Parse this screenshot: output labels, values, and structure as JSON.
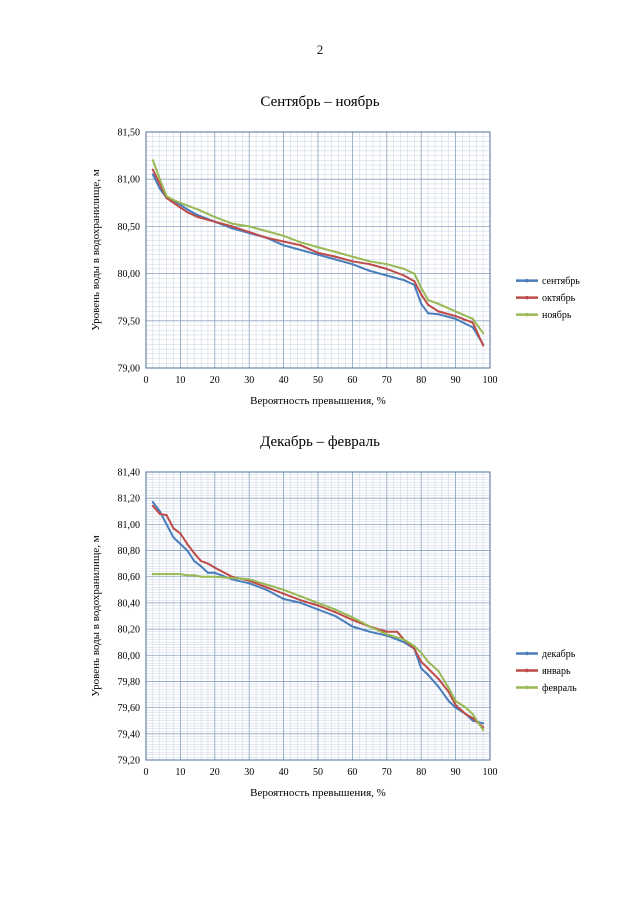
{
  "page_number": "2",
  "chart_data": [
    {
      "type": "line",
      "title": "Сентябрь – ноябрь",
      "xlabel": "Вероятность превышения, %",
      "ylabel": "Уровень воды в водохранилище, м",
      "xlim": [
        0,
        100
      ],
      "ylim": [
        79.0,
        81.5
      ],
      "x_ticks": [
        "0",
        "10",
        "20",
        "30",
        "40",
        "50",
        "60",
        "70",
        "80",
        "90",
        "100"
      ],
      "y_ticks": [
        "79,00",
        "79,50",
        "80,00",
        "80,50",
        "81,00",
        "81,50"
      ],
      "grid": true,
      "legend_position": "right",
      "series": [
        {
          "name": "сентябрь",
          "color": "#4a7ebb",
          "x": [
            2,
            4,
            6,
            8,
            10,
            12,
            15,
            20,
            25,
            30,
            35,
            40,
            45,
            50,
            55,
            60,
            65,
            70,
            75,
            78,
            80,
            82,
            85,
            90,
            95,
            98
          ],
          "y": [
            81.05,
            80.9,
            80.8,
            80.77,
            80.73,
            80.68,
            80.62,
            80.55,
            80.48,
            80.43,
            80.38,
            80.3,
            80.25,
            80.2,
            80.15,
            80.1,
            80.03,
            79.98,
            79.93,
            79.88,
            79.68,
            79.58,
            79.57,
            79.52,
            79.43,
            79.25
          ]
        },
        {
          "name": "октябрь",
          "color": "#be4b48",
          "x": [
            2,
            4,
            6,
            8,
            10,
            12,
            15,
            20,
            25,
            30,
            35,
            40,
            45,
            50,
            55,
            60,
            65,
            70,
            75,
            78,
            80,
            82,
            85,
            90,
            95,
            98
          ],
          "y": [
            81.1,
            80.95,
            80.8,
            80.75,
            80.7,
            80.65,
            80.6,
            80.55,
            80.5,
            80.44,
            80.38,
            80.34,
            80.3,
            80.22,
            80.18,
            80.13,
            80.1,
            80.05,
            79.98,
            79.92,
            79.78,
            79.67,
            79.6,
            79.55,
            79.48,
            79.24
          ]
        },
        {
          "name": "ноябрь",
          "color": "#98b954",
          "x": [
            2,
            4,
            6,
            8,
            10,
            12,
            15,
            20,
            25,
            30,
            35,
            40,
            45,
            50,
            55,
            60,
            65,
            70,
            75,
            78,
            80,
            82,
            85,
            90,
            95,
            98
          ],
          "y": [
            81.2,
            81.0,
            80.82,
            80.78,
            80.75,
            80.72,
            80.68,
            80.6,
            80.53,
            80.5,
            80.45,
            80.4,
            80.33,
            80.28,
            80.23,
            80.18,
            80.13,
            80.1,
            80.05,
            80.0,
            79.85,
            79.72,
            79.68,
            79.6,
            79.52,
            79.37
          ]
        }
      ]
    },
    {
      "type": "line",
      "title": "Декабрь – февраль",
      "xlabel": "Вероятность превышения, %",
      "ylabel": "Уровень воды в водохранилище, м",
      "xlim": [
        0,
        100
      ],
      "ylim": [
        79.2,
        81.4
      ],
      "x_ticks": [
        "0",
        "10",
        "20",
        "30",
        "40",
        "50",
        "60",
        "70",
        "80",
        "90",
        "100"
      ],
      "y_ticks": [
        "79,20",
        "79,40",
        "79,60",
        "79,80",
        "80,00",
        "80,20",
        "80,40",
        "80,60",
        "80,80",
        "81,00",
        "81,20",
        "81,40"
      ],
      "grid": true,
      "legend_position": "right",
      "series": [
        {
          "name": "декабрь",
          "color": "#4a7ebb",
          "x": [
            2,
            4,
            6,
            8,
            10,
            12,
            14,
            16,
            18,
            20,
            25,
            30,
            35,
            40,
            45,
            50,
            55,
            60,
            65,
            70,
            75,
            78,
            80,
            82,
            85,
            88,
            90,
            93,
            95,
            98
          ],
          "y": [
            81.17,
            81.1,
            81.0,
            80.9,
            80.85,
            80.8,
            80.72,
            80.68,
            80.63,
            80.63,
            80.58,
            80.55,
            80.5,
            80.43,
            80.4,
            80.35,
            80.3,
            80.22,
            80.18,
            80.15,
            80.1,
            80.05,
            79.9,
            79.85,
            79.76,
            79.65,
            79.6,
            79.55,
            79.5,
            79.48
          ]
        },
        {
          "name": "январь",
          "color": "#be4b48",
          "x": [
            2,
            4,
            6,
            8,
            10,
            12,
            14,
            16,
            18,
            20,
            25,
            30,
            35,
            40,
            45,
            50,
            55,
            60,
            65,
            70,
            73,
            75,
            78,
            80,
            82,
            85,
            88,
            90,
            93,
            95,
            98
          ],
          "y": [
            81.14,
            81.08,
            81.07,
            80.97,
            80.93,
            80.85,
            80.78,
            80.72,
            80.7,
            80.67,
            80.6,
            80.57,
            80.52,
            80.47,
            80.42,
            80.38,
            80.33,
            80.27,
            80.22,
            80.18,
            80.18,
            80.12,
            80.05,
            79.95,
            79.9,
            79.82,
            79.72,
            79.62,
            79.55,
            79.52,
            79.45
          ]
        },
        {
          "name": "февраль",
          "color": "#98b954",
          "x": [
            2,
            4,
            6,
            8,
            10,
            12,
            14,
            16,
            18,
            20,
            25,
            30,
            35,
            40,
            45,
            50,
            55,
            60,
            65,
            70,
            75,
            78,
            80,
            82,
            85,
            88,
            90,
            93,
            95,
            98
          ],
          "y": [
            80.62,
            80.62,
            80.62,
            80.62,
            80.62,
            80.61,
            80.61,
            80.6,
            80.6,
            80.6,
            80.59,
            80.58,
            80.54,
            80.5,
            80.45,
            80.4,
            80.35,
            80.29,
            80.22,
            80.16,
            80.12,
            80.07,
            80.02,
            79.95,
            79.88,
            79.75,
            79.65,
            79.6,
            79.55,
            79.43
          ]
        }
      ]
    }
  ]
}
